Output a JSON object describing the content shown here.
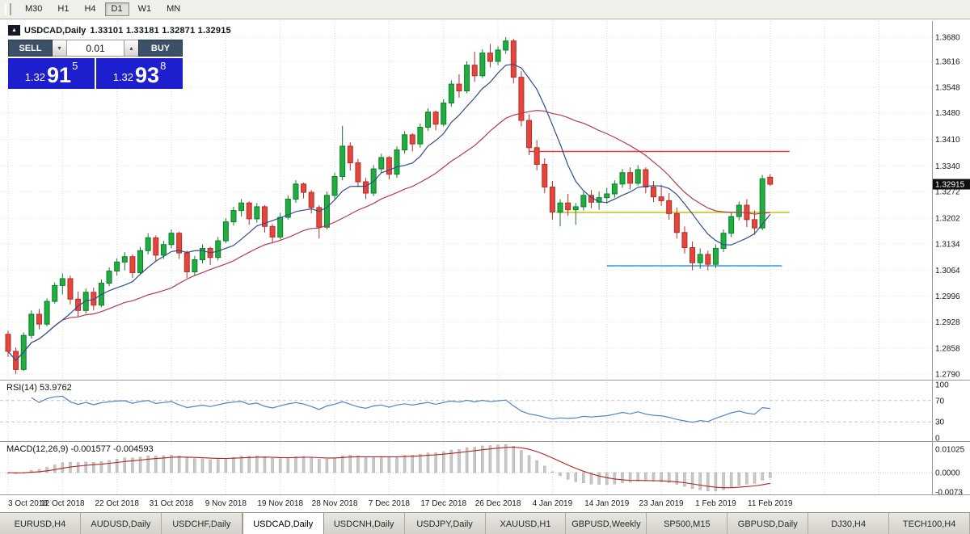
{
  "toolbar": {
    "timeframes": [
      {
        "label": "M30",
        "active": false
      },
      {
        "label": "H1",
        "active": false
      },
      {
        "label": "H4",
        "active": false
      },
      {
        "label": "D1",
        "active": true
      },
      {
        "label": "W1",
        "active": false
      },
      {
        "label": "MN",
        "active": false
      }
    ]
  },
  "trade_panel": {
    "panel_toggle_icon": "▲",
    "sell_label": "SELL",
    "buy_label": "BUY",
    "volume": "0.01",
    "volume_down_icon": "▾",
    "volume_up_icon": "▴",
    "sell_price": {
      "prefix": "1.32",
      "digits": "91",
      "pip": "5"
    },
    "buy_price": {
      "prefix": "1.32",
      "digits": "93",
      "pip": "8"
    }
  },
  "chart_data": {
    "type": "candlestick",
    "symbol_title": "USDCAD,Daily",
    "ohlc_text": "1.33101 1.33181 1.32871 1.32915",
    "ohlc": {
      "open": "1.33101",
      "high": "1.33181",
      "low": "1.32871",
      "close": "1.32915"
    },
    "ylim": [
      1.279,
      1.368
    ],
    "price_axis_values": [
      1.368,
      1.3616,
      1.3548,
      1.348,
      1.341,
      1.334,
      1.3272,
      1.3202,
      1.3134,
      1.3064,
      1.2996,
      1.2928,
      1.2858,
      1.279
    ],
    "x_labels": [
      "3 Oct 2018",
      "12 Oct 2018",
      "22 Oct 2018",
      "31 Oct 2018",
      "9 Nov 2018",
      "19 Nov 2018",
      "28 Nov 2018",
      "7 Dec 2018",
      "17 Dec 2018",
      "26 Dec 2018",
      "4 Jan 2019",
      "14 Jan 2019",
      "23 Jan 2019",
      "1 Feb 2019",
      "11 Feb 2019"
    ],
    "bid": {
      "price": 1.32915,
      "label": "1.32915"
    },
    "colors": {
      "up": "#1fae3f",
      "up_stroke": "#0e7d2c",
      "down": "#e5453c",
      "down_stroke": "#b13028",
      "grid": "#dcdcdc"
    },
    "object_lines": [
      {
        "name": "resistance-line-red",
        "color": "#f23b2e",
        "price": 1.3378,
        "from_index": 67.0,
        "to_index": 100.5
      },
      {
        "name": "level-line-yellow",
        "color": "#bcbc00",
        "price": 1.3217,
        "from_index": 70.5,
        "to_index": 100.5
      },
      {
        "name": "support-line-blue",
        "color": "#2f9be0",
        "price": 1.3076,
        "from_index": 77.0,
        "to_index": 99.5
      }
    ],
    "overlays": [
      {
        "name": "ma-slow-line",
        "type": "sma",
        "period": 22,
        "color": "#b23b57"
      },
      {
        "name": "ma-fast-line",
        "type": "sma",
        "period": 8,
        "color": "#2e4e8f"
      }
    ],
    "indicators": {
      "rsi": {
        "label": "RSI(14) 53.9762",
        "period": 14,
        "color": "#4a86c8",
        "levels": [
          100,
          70,
          30,
          0
        ],
        "level_lines": [
          70,
          30
        ]
      },
      "macd": {
        "label": "MACD(12,26,9) -0.001577 -0.004593",
        "fast": 12,
        "slow": 26,
        "signal": 9,
        "scale_labels": [
          "0.01025",
          "0.0000",
          "-0.0073"
        ],
        "histogram_color": "#c9c9c9",
        "signal_color": "#b22222"
      }
    },
    "candles": [
      [
        1.2895,
        1.2905,
        1.2835,
        1.285
      ],
      [
        1.285,
        1.286,
        1.279,
        1.2802
      ],
      [
        1.2802,
        1.29,
        1.2798,
        1.2892
      ],
      [
        1.2892,
        1.2958,
        1.2884,
        1.2948
      ],
      [
        1.2948,
        1.2962,
        1.2908,
        1.2922
      ],
      [
        1.2922,
        1.299,
        1.2916,
        1.2982
      ],
      [
        1.2982,
        1.3032,
        1.2976,
        1.3024
      ],
      [
        1.3024,
        1.3056,
        1.3,
        1.3042
      ],
      [
        1.3042,
        1.305,
        1.2974,
        1.2988
      ],
      [
        1.2988,
        1.3008,
        1.2942,
        1.2958
      ],
      [
        1.2958,
        1.3016,
        1.295,
        1.3006
      ],
      [
        1.3006,
        1.3018,
        1.2958,
        1.2972
      ],
      [
        1.2972,
        1.304,
        1.2966,
        1.303
      ],
      [
        1.303,
        1.3072,
        1.3022,
        1.3062
      ],
      [
        1.3062,
        1.3096,
        1.305,
        1.3086
      ],
      [
        1.3086,
        1.3112,
        1.3064,
        1.31
      ],
      [
        1.31,
        1.3106,
        1.3044,
        1.3058
      ],
      [
        1.3058,
        1.3126,
        1.3052,
        1.3116
      ],
      [
        1.3116,
        1.3162,
        1.3106,
        1.315
      ],
      [
        1.315,
        1.3156,
        1.3088,
        1.3104
      ],
      [
        1.3104,
        1.3142,
        1.3094,
        1.3132
      ],
      [
        1.3132,
        1.3172,
        1.3122,
        1.3162
      ],
      [
        1.3162,
        1.3166,
        1.3094,
        1.311
      ],
      [
        1.311,
        1.3116,
        1.3044,
        1.306
      ],
      [
        1.306,
        1.3102,
        1.305,
        1.3092
      ],
      [
        1.3092,
        1.3132,
        1.3082,
        1.3122
      ],
      [
        1.3122,
        1.3126,
        1.3078,
        1.3098
      ],
      [
        1.3098,
        1.3152,
        1.309,
        1.3142
      ],
      [
        1.3142,
        1.3202,
        1.3136,
        1.3192
      ],
      [
        1.3192,
        1.3232,
        1.3182,
        1.3222
      ],
      [
        1.3222,
        1.3252,
        1.3206,
        1.3242
      ],
      [
        1.3242,
        1.3246,
        1.3184,
        1.32
      ],
      [
        1.32,
        1.3242,
        1.319,
        1.3232
      ],
      [
        1.3232,
        1.3236,
        1.3164,
        1.318
      ],
      [
        1.318,
        1.3186,
        1.3138,
        1.3152
      ],
      [
        1.3152,
        1.3216,
        1.3146,
        1.3204
      ],
      [
        1.3204,
        1.3262,
        1.3198,
        1.3252
      ],
      [
        1.3252,
        1.3302,
        1.3242,
        1.3292
      ],
      [
        1.3292,
        1.3296,
        1.3254,
        1.327
      ],
      [
        1.327,
        1.3276,
        1.3214,
        1.323
      ],
      [
        1.323,
        1.3236,
        1.3148,
        1.3178
      ],
      [
        1.3178,
        1.3272,
        1.3172,
        1.3262
      ],
      [
        1.3262,
        1.3322,
        1.3252,
        1.3312
      ],
      [
        1.3312,
        1.3446,
        1.3302,
        1.3392
      ],
      [
        1.3392,
        1.3402,
        1.3328,
        1.3348
      ],
      [
        1.3348,
        1.3358,
        1.3284,
        1.3298
      ],
      [
        1.3298,
        1.3308,
        1.3252,
        1.3268
      ],
      [
        1.3268,
        1.3342,
        1.326,
        1.3332
      ],
      [
        1.3332,
        1.3372,
        1.3322,
        1.3362
      ],
      [
        1.3362,
        1.3366,
        1.3304,
        1.3318
      ],
      [
        1.3318,
        1.3392,
        1.3308,
        1.3382
      ],
      [
        1.3382,
        1.3432,
        1.3372,
        1.3422
      ],
      [
        1.3422,
        1.3426,
        1.3378,
        1.3398
      ],
      [
        1.3398,
        1.3452,
        1.3388,
        1.3442
      ],
      [
        1.3442,
        1.3492,
        1.3432,
        1.3482
      ],
      [
        1.3482,
        1.3486,
        1.3434,
        1.345
      ],
      [
        1.345,
        1.3516,
        1.3444,
        1.3506
      ],
      [
        1.3506,
        1.3566,
        1.3496,
        1.3556
      ],
      [
        1.3556,
        1.3582,
        1.352,
        1.3538
      ],
      [
        1.3538,
        1.3616,
        1.3532,
        1.3606
      ],
      [
        1.3606,
        1.3642,
        1.3562,
        1.3578
      ],
      [
        1.3578,
        1.3648,
        1.3572,
        1.3638
      ],
      [
        1.3638,
        1.3662,
        1.36,
        1.3616
      ],
      [
        1.3616,
        1.3656,
        1.3606,
        1.3646
      ],
      [
        1.3646,
        1.368,
        1.3636,
        1.367
      ],
      [
        1.367,
        1.3676,
        1.3558,
        1.3574
      ],
      [
        1.3574,
        1.359,
        1.3444,
        1.346
      ],
      [
        1.346,
        1.3476,
        1.3368,
        1.3388
      ],
      [
        1.3388,
        1.3408,
        1.3328,
        1.3344
      ],
      [
        1.3344,
        1.336,
        1.3268,
        1.3284
      ],
      [
        1.3284,
        1.33,
        1.3198,
        1.3218
      ],
      [
        1.3218,
        1.3252,
        1.318,
        1.3242
      ],
      [
        1.3242,
        1.3266,
        1.3208,
        1.3224
      ],
      [
        1.3224,
        1.3242,
        1.3184,
        1.3232
      ],
      [
        1.3232,
        1.3272,
        1.3222,
        1.3262
      ],
      [
        1.3262,
        1.3276,
        1.3228,
        1.3244
      ],
      [
        1.3244,
        1.3272,
        1.3224,
        1.3256
      ],
      [
        1.3256,
        1.3282,
        1.324,
        1.3266
      ],
      [
        1.3266,
        1.3302,
        1.3256,
        1.3292
      ],
      [
        1.3292,
        1.3332,
        1.3282,
        1.3322
      ],
      [
        1.3322,
        1.3336,
        1.3278,
        1.3294
      ],
      [
        1.3294,
        1.3342,
        1.3288,
        1.333
      ],
      [
        1.333,
        1.3336,
        1.3268,
        1.3284
      ],
      [
        1.3284,
        1.33,
        1.3244,
        1.3258
      ],
      [
        1.3258,
        1.329,
        1.3234,
        1.3248
      ],
      [
        1.3248,
        1.3268,
        1.3198,
        1.3214
      ],
      [
        1.3214,
        1.323,
        1.3148,
        1.3164
      ],
      [
        1.3164,
        1.318,
        1.3108,
        1.3124
      ],
      [
        1.3124,
        1.314,
        1.3064,
        1.3084
      ],
      [
        1.3084,
        1.3122,
        1.3068,
        1.3106
      ],
      [
        1.3106,
        1.3116,
        1.3064,
        1.308
      ],
      [
        1.308,
        1.3132,
        1.307,
        1.3122
      ],
      [
        1.3122,
        1.3172,
        1.3112,
        1.3162
      ],
      [
        1.3162,
        1.3216,
        1.3152,
        1.3206
      ],
      [
        1.3206,
        1.3246,
        1.3196,
        1.3236
      ],
      [
        1.3236,
        1.3252,
        1.3178,
        1.3198
      ],
      [
        1.3198,
        1.3222,
        1.3158,
        1.3176
      ],
      [
        1.3176,
        1.3316,
        1.317,
        1.3306
      ],
      [
        1.33101,
        1.33181,
        1.32871,
        1.32915
      ]
    ]
  },
  "tabs": [
    {
      "label": "EURUSD,H4",
      "active": false
    },
    {
      "label": "AUDUSD,Daily",
      "active": false
    },
    {
      "label": "USDCHF,Daily",
      "active": false
    },
    {
      "label": "USDCAD,Daily",
      "active": true
    },
    {
      "label": "USDCNH,Daily",
      "active": false
    },
    {
      "label": "USDJPY,Daily",
      "active": false
    },
    {
      "label": "XAUUSD,H1",
      "active": false
    },
    {
      "label": "GBPUSD,Weekly",
      "active": false
    },
    {
      "label": "SP500,M15",
      "active": false
    },
    {
      "label": "GBPUSD,Daily",
      "active": false
    },
    {
      "label": "DJ30,H4",
      "active": false
    },
    {
      "label": "TECH100,H4",
      "active": false
    }
  ]
}
